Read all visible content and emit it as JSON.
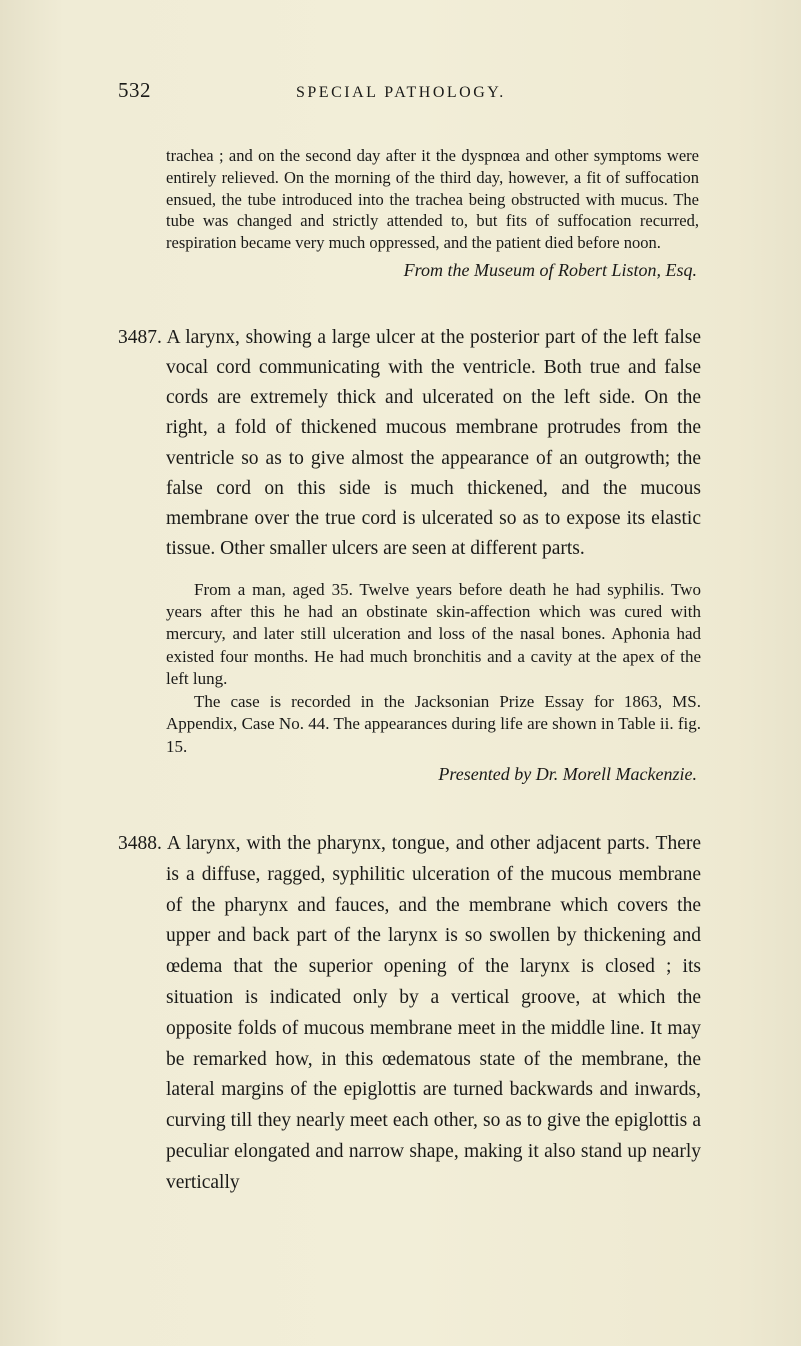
{
  "page_number": "532",
  "running_head": "SPECIAL PATHOLOGY.",
  "trachea_para": "trachea ; and on the second day after it the dyspnœa and other symptoms were entirely relieved. On the morning of the third day, however, a fit of suffocation ensued, the tube introduced into the trachea being obstructed with mucus. The tube was changed and strictly attended to, but fits of suffocation recurred, respira­tion became very much oppressed, and the patient died before noon.",
  "citation_1": "From the Museum of Robert Liston, Esq.",
  "entry_3487": {
    "num": "3487.",
    "text": " A larynx, showing a large ulcer at the posterior part of the left false vocal cord communicating with the ventricle. Both true and false cords are extremely thick and ulcerated on the left side. On the right, a fold of thickened mucous membrane protrudes from the ventricle so as to give almost the appearance of an outgrowth; the false cord on this side is much thickened, and the mucous membrane over the true cord is ulcerated so as to expose its elastic tissue. Other smaller ulcers are seen at different parts.",
    "sub1": "From a man, aged 35. Twelve years before death he had syphilis. Two years after this he had an obstinate skin-affection which was cured with mercury, and later still ulceration and loss of the nasal bones. Aphonia had existed four months. He had much bronchitis and a cavity at the apex of the left lung.",
    "sub2": "The case is recorded in the Jacksonian Prize Essay for 1863, MS. Appendix, Case No. 44. The appearances during life are shown in Table ii. fig. 15.",
    "presented": "Presented by Dr. Morell Mackenzie."
  },
  "entry_3488": {
    "num": "3488.",
    "text": " A larynx, with the pharynx, tongue, and other adjacent parts. There is a diffuse, ragged, syphilitic ulceration of the mucous membrane of the pharynx and fauces, and the membrane which covers the upper and back part of the larynx is so swollen by thickening and œdema that the superior opening of the larynx is closed ; its situation is indicated only by a vertical groove, at which the opposite folds of mucous membrane meet in the middle line. It may be remarked how, in this œdematous state of the membrane, the lateral margins of the epiglottis are turned backwards and inwards, curving till they nearly meet each other, so as to give the epiglottis a peculiar elongated and narrow shape, making it also stand up nearly vertically"
  },
  "colors": {
    "page_bg": "#f0ecd6",
    "text": "#1a1a18"
  },
  "typography": {
    "body_size_pt": 19,
    "small_size_pt": 17,
    "header_size_pt": 16,
    "line_height_body": 1.55,
    "line_height_small": 1.32
  }
}
